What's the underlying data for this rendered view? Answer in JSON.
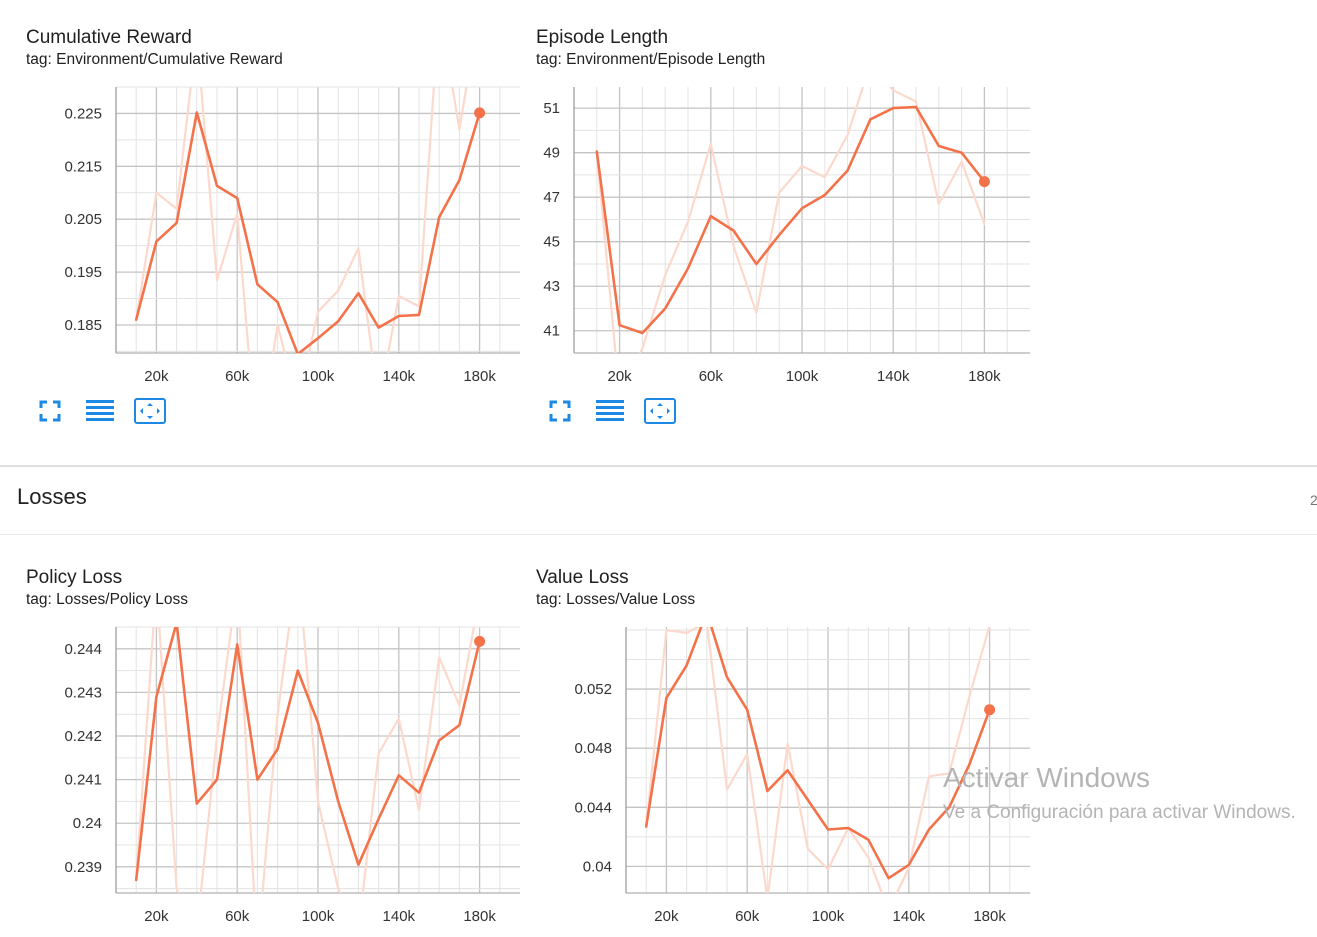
{
  "colors": {
    "line": "#f4724a",
    "raw": "#fcd9cc",
    "grid": "#c8c8c8",
    "axis": "#9e9e9e",
    "icon": "#1e88e5"
  },
  "section": {
    "title": "Losses",
    "count": "2"
  },
  "watermark": {
    "line1": "Activar Windows",
    "line2": "Ve a Configuración para activar Windows."
  },
  "toolbar_icons": [
    "fullscreen-icon",
    "data-table-icon",
    "fit-domain-icon"
  ],
  "chart_data": [
    {
      "type": "line",
      "title": "Cumulative Reward",
      "tag": "tag: Environment/Cumulative Reward",
      "xlim": [
        0,
        200000
      ],
      "ylim": [
        0.1797,
        0.23
      ],
      "xticks": [
        20000,
        60000,
        100000,
        140000,
        180000
      ],
      "xtick_labels": [
        "20k",
        "60k",
        "100k",
        "140k",
        "180k"
      ],
      "yticks": [
        0.185,
        0.195,
        0.205,
        0.215,
        0.225
      ],
      "ytick_labels": [
        "0.185",
        "0.195",
        "0.205",
        "0.215",
        "0.225"
      ],
      "grid": true,
      "series": [
        {
          "values_x": [
            10000,
            20000,
            30000,
            40000,
            50000,
            60000,
            70000,
            80000,
            90000,
            100000,
            110000,
            120000,
            130000,
            140000,
            150000,
            160000,
            170000,
            180000
          ],
          "values_y": [
            0.186,
            0.21,
            0.207,
            0.24,
            0.1935,
            0.206,
            0.16,
            0.185,
            0.17,
            0.1875,
            0.1915,
            0.1995,
            0.17,
            0.1905,
            0.1885,
            0.245,
            0.222,
            0.245
          ],
          "style": "raw"
        },
        {
          "values_x": [
            10000,
            20000,
            30000,
            40000,
            50000,
            60000,
            70000,
            80000,
            90000,
            100000,
            110000,
            120000,
            130000,
            140000,
            150000,
            160000,
            170000,
            180000
          ],
          "values_y": [
            0.186,
            0.2008,
            0.2043,
            0.2252,
            0.2113,
            0.209,
            0.1927,
            0.1893,
            0.1795,
            0.1825,
            0.1857,
            0.191,
            0.1845,
            0.1867,
            0.1869,
            0.2054,
            0.2124,
            0.2251
          ],
          "style": "smoothed"
        }
      ]
    },
    {
      "type": "line",
      "title": "Episode Length",
      "tag": "tag: Environment/Episode Length",
      "xlim": [
        0,
        200000
      ],
      "ylim": [
        40.0,
        51.95
      ],
      "xticks": [
        20000,
        60000,
        100000,
        140000,
        180000
      ],
      "xtick_labels": [
        "20k",
        "60k",
        "100k",
        "140k",
        "180k"
      ],
      "yticks": [
        41,
        43,
        45,
        47,
        49,
        51
      ],
      "ytick_labels": [
        "41",
        "43",
        "45",
        "47",
        "49",
        "51"
      ],
      "grid": true,
      "series": [
        {
          "values_x": [
            10000,
            20000,
            30000,
            40000,
            50000,
            60000,
            70000,
            80000,
            90000,
            100000,
            110000,
            120000,
            130000,
            140000,
            150000,
            160000,
            170000,
            180000
          ],
          "values_y": [
            49.05,
            38.0,
            40.2,
            43.5,
            45.9,
            49.4,
            44.8,
            41.8,
            47.2,
            48.4,
            47.9,
            49.8,
            53.0,
            51.8,
            51.3,
            46.7,
            48.6,
            45.8
          ],
          "style": "raw"
        },
        {
          "values_x": [
            10000,
            20000,
            30000,
            40000,
            50000,
            60000,
            70000,
            80000,
            90000,
            100000,
            110000,
            120000,
            130000,
            140000,
            150000,
            160000,
            170000,
            180000
          ],
          "values_y": [
            49.05,
            41.25,
            40.9,
            42.0,
            43.8,
            46.15,
            45.5,
            44.0,
            45.3,
            46.5,
            47.1,
            48.2,
            50.5,
            51.0,
            51.05,
            49.3,
            49.0,
            47.7
          ],
          "style": "smoothed"
        }
      ]
    },
    {
      "type": "line",
      "title": "Policy Loss",
      "tag": "tag: Losses/Policy Loss",
      "xlim": [
        0,
        200000
      ],
      "ylim": [
        0.2384,
        0.2445
      ],
      "xticks": [
        20000,
        60000,
        100000,
        140000,
        180000
      ],
      "xtick_labels": [
        "20k",
        "60k",
        "100k",
        "140k",
        "180k"
      ],
      "yticks": [
        0.239,
        0.24,
        0.241,
        0.242,
        0.243,
        0.244
      ],
      "ytick_labels": [
        "0.239",
        "0.24",
        "0.241",
        "0.242",
        "0.243",
        "0.244"
      ],
      "grid": true,
      "series": [
        {
          "values_x": [
            10000,
            20000,
            30000,
            40000,
            50000,
            60000,
            70000,
            80000,
            90000,
            100000,
            110000,
            120000,
            130000,
            140000,
            150000,
            160000,
            170000,
            180000
          ],
          "values_y": [
            0.2387,
            0.2455,
            0.2385,
            0.2375,
            0.242,
            0.2455,
            0.237,
            0.2425,
            0.246,
            0.2405,
            0.2385,
            0.2375,
            0.2416,
            0.2424,
            0.2403,
            0.2438,
            0.2427,
            0.2452
          ],
          "style": "raw"
        },
        {
          "values_x": [
            10000,
            20000,
            30000,
            40000,
            50000,
            60000,
            70000,
            80000,
            90000,
            100000,
            110000,
            120000,
            130000,
            140000,
            150000,
            160000,
            170000,
            180000
          ],
          "values_y": [
            0.2387,
            0.2429,
            0.2446,
            0.24045,
            0.241,
            0.2441,
            0.241,
            0.2417,
            0.2435,
            0.2423,
            0.2405,
            0.23905,
            0.2401,
            0.2411,
            0.2407,
            0.2419,
            0.24225,
            0.24417
          ],
          "style": "smoothed"
        }
      ]
    },
    {
      "type": "line",
      "title": "Value Loss",
      "tag": "tag: Losses/Value Loss",
      "xlim": [
        0,
        200000
      ],
      "ylim": [
        0.0382,
        0.0562
      ],
      "xticks": [
        20000,
        60000,
        100000,
        140000,
        180000
      ],
      "xtick_labels": [
        "20k",
        "60k",
        "100k",
        "140k",
        "180k"
      ],
      "yticks": [
        0.04,
        0.044,
        0.048,
        0.052
      ],
      "ytick_labels": [
        "0.04",
        "0.044",
        "0.048",
        "0.052"
      ],
      "grid": true,
      "series": [
        {
          "values_x": [
            10000,
            20000,
            30000,
            40000,
            50000,
            60000,
            70000,
            80000,
            90000,
            100000,
            110000,
            120000,
            130000,
            140000,
            150000,
            160000,
            170000,
            180000
          ],
          "values_y": [
            0.0427,
            0.056,
            0.0558,
            0.0565,
            0.0452,
            0.0476,
            0.0378,
            0.0483,
            0.0412,
            0.0398,
            0.0426,
            0.0406,
            0.037,
            0.0399,
            0.0461,
            0.0463,
            0.0515,
            0.0563
          ],
          "style": "raw"
        },
        {
          "values_x": [
            10000,
            20000,
            30000,
            40000,
            50000,
            60000,
            70000,
            80000,
            90000,
            100000,
            110000,
            120000,
            130000,
            140000,
            150000,
            160000,
            170000,
            180000
          ],
          "values_y": [
            0.0427,
            0.0514,
            0.0536,
            0.0572,
            0.0528,
            0.0506,
            0.0451,
            0.0465,
            0.0445,
            0.0425,
            0.0426,
            0.0418,
            0.0392,
            0.0401,
            0.0425,
            0.044,
            0.0469,
            0.0506
          ],
          "style": "smoothed"
        }
      ]
    }
  ]
}
